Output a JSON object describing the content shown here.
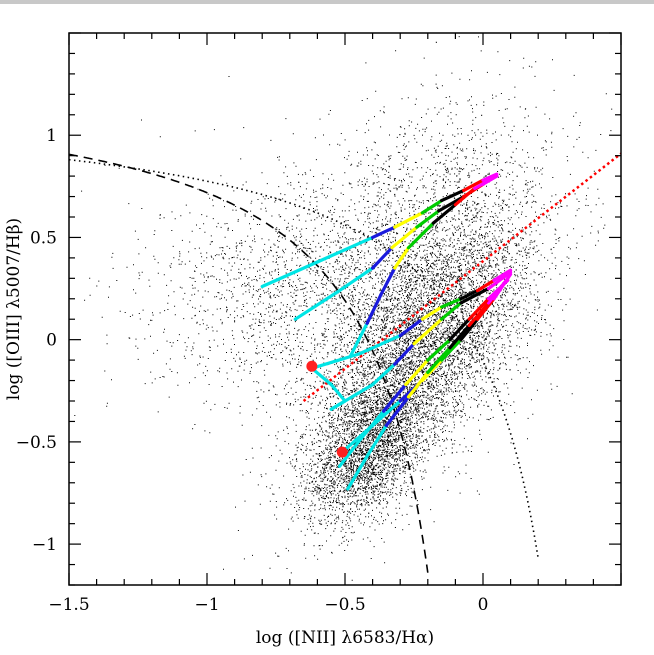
{
  "chart_data": {
    "type": "scatter",
    "title": "",
    "xlabel": "log ([NII] λ6583/Hα)",
    "ylabel": "log ([OIII] λ5007/Hβ)",
    "xlim": [
      -1.5,
      0.5
    ],
    "ylim": [
      -1.2,
      1.5
    ],
    "x_ticks": [
      -1.5,
      -1,
      -0.5,
      0
    ],
    "x_tick_labels": [
      "−1.5",
      "−1",
      "−0.5",
      "0"
    ],
    "y_ticks": [
      -1,
      -0.5,
      0,
      0.5,
      1
    ],
    "y_tick_labels": [
      "−1",
      "−0.5",
      "0",
      "0.5",
      "1"
    ],
    "grid": false,
    "colors": {
      "points": "#000000",
      "kauffmann": "#000000",
      "kewley": "#000000",
      "red_line": "#ff0000",
      "markers": "#ff2020",
      "segment_palette": [
        "#00e5e5",
        "#1a1adc",
        "#ffff00",
        "#00cc00",
        "#000000",
        "#ff0000",
        "#ff00ff"
      ]
    },
    "scatter_clouds": [
      {
        "cx": -0.42,
        "cy": -0.55,
        "sx": 0.11,
        "sy": 0.17,
        "n": 2600,
        "rho": 0.45
      },
      {
        "cx": -0.22,
        "cy": -0.05,
        "sx": 0.2,
        "sy": 0.32,
        "n": 5600,
        "rho": 0.6
      },
      {
        "cx": -0.55,
        "cy": 0.25,
        "sx": 0.32,
        "sy": 0.28,
        "n": 2400,
        "rho": 0.1
      },
      {
        "cx": -0.15,
        "cy": 0.6,
        "sx": 0.22,
        "sy": 0.32,
        "n": 1400,
        "rho": 0.2
      }
    ],
    "curves": [
      {
        "name": "Kauffmann demarcation",
        "style": "dashed",
        "formula": "0.61/(x-0.05)+1.3",
        "x_range": [
          -1.5,
          -0.2
        ]
      },
      {
        "name": "Kewley demarcation",
        "style": "dotted",
        "formula": "0.61/(x-0.47)+1.19",
        "x_range": [
          -1.5,
          0.2
        ]
      },
      {
        "name": "Seyfert/LINER line",
        "style": "red-dotted",
        "points": [
          [
            -0.65,
            -0.3
          ],
          [
            0.5,
            0.91
          ]
        ]
      }
    ],
    "tracks": [
      {
        "points": [
          [
            -0.8,
            0.26
          ],
          [
            -0.6,
            0.38
          ],
          [
            -0.4,
            0.5
          ],
          [
            -0.32,
            0.55
          ],
          [
            -0.22,
            0.62
          ],
          [
            -0.15,
            0.68
          ],
          [
            -0.07,
            0.73
          ],
          [
            0.0,
            0.78
          ],
          [
            0.05,
            0.81
          ]
        ],
        "colors": [
          "#00e5e5",
          "#00e5e5",
          "#1a1adc",
          "#ffff00",
          "#00cc00",
          "#000000",
          "#ff0000",
          "#ff00ff"
        ]
      },
      {
        "points": [
          [
            -0.68,
            0.1
          ],
          [
            -0.52,
            0.24
          ],
          [
            -0.4,
            0.35
          ],
          [
            -0.33,
            0.45
          ],
          [
            -0.24,
            0.55
          ],
          [
            -0.16,
            0.63
          ],
          [
            -0.07,
            0.7
          ],
          [
            0.0,
            0.76
          ],
          [
            0.05,
            0.8
          ]
        ],
        "colors": [
          "#00e5e5",
          "#00e5e5",
          "#1a1adc",
          "#ffff00",
          "#00cc00",
          "#000000",
          "#ff0000",
          "#ff00ff"
        ]
      },
      {
        "points": [
          [
            -0.48,
            -0.08
          ],
          [
            -0.42,
            0.08
          ],
          [
            -0.37,
            0.22
          ],
          [
            -0.32,
            0.35
          ],
          [
            -0.27,
            0.45
          ],
          [
            -0.18,
            0.57
          ],
          [
            -0.1,
            0.66
          ],
          [
            -0.03,
            0.74
          ],
          [
            0.05,
            0.8
          ]
        ],
        "colors": [
          "#00e5e5",
          "#1a1adc",
          "#1a1adc",
          "#ffff00",
          "#00cc00",
          "#000000",
          "#ff0000",
          "#ff00ff"
        ]
      },
      {
        "points": [
          [
            -0.62,
            -0.14
          ],
          [
            -0.45,
            -0.07
          ],
          [
            -0.3,
            0.02
          ],
          [
            -0.22,
            0.1
          ],
          [
            -0.15,
            0.16
          ],
          [
            -0.08,
            0.2
          ],
          [
            -0.02,
            0.24
          ],
          [
            0.04,
            0.29
          ],
          [
            0.1,
            0.34
          ]
        ],
        "colors": [
          "#00e5e5",
          "#00e5e5",
          "#1a1adc",
          "#ffff00",
          "#00cc00",
          "#000000",
          "#ff0000",
          "#ff00ff"
        ]
      },
      {
        "points": [
          [
            -0.62,
            -0.14
          ],
          [
            -0.55,
            -0.22
          ],
          [
            -0.5,
            -0.3
          ],
          [
            -0.55,
            -0.34
          ],
          [
            -0.4,
            -0.22
          ],
          [
            -0.32,
            -0.12
          ],
          [
            -0.25,
            -0.02
          ],
          [
            -0.15,
            0.1
          ],
          [
            -0.08,
            0.18
          ],
          [
            0.02,
            0.25
          ],
          [
            0.1,
            0.33
          ]
        ],
        "colors": [
          "#00e5e5",
          "#00e5e5",
          "#00e5e5",
          "#00e5e5",
          "#00e5e5",
          "#1a1adc",
          "#ffff00",
          "#00cc00",
          "#000000",
          "#ff00ff"
        ]
      },
      {
        "points": [
          [
            -0.51,
            -0.55
          ],
          [
            -0.4,
            -0.42
          ],
          [
            -0.3,
            -0.3
          ],
          [
            -0.22,
            -0.2
          ],
          [
            -0.15,
            -0.1
          ],
          [
            -0.08,
            0.0
          ],
          [
            -0.02,
            0.1
          ],
          [
            0.04,
            0.2
          ],
          [
            0.1,
            0.32
          ]
        ],
        "colors": [
          "#00e5e5",
          "#00e5e5",
          "#1a1adc",
          "#ffff00",
          "#00cc00",
          "#000000",
          "#ff0000",
          "#ff00ff"
        ]
      },
      {
        "points": [
          [
            -0.49,
            -0.73
          ],
          [
            -0.42,
            -0.57
          ],
          [
            -0.35,
            -0.42
          ],
          [
            -0.27,
            -0.28
          ],
          [
            -0.2,
            -0.16
          ],
          [
            -0.12,
            -0.04
          ],
          [
            -0.05,
            0.07
          ],
          [
            0.02,
            0.18
          ],
          [
            0.09,
            0.3
          ]
        ],
        "colors": [
          "#00e5e5",
          "#00e5e5",
          "#1a1adc",
          "#ffff00",
          "#00cc00",
          "#000000",
          "#ff0000",
          "#ff00ff"
        ]
      },
      {
        "points": [
          [
            -0.52,
            -0.62
          ],
          [
            -0.44,
            -0.48
          ],
          [
            -0.36,
            -0.35
          ],
          [
            -0.28,
            -0.22
          ],
          [
            -0.2,
            -0.1
          ],
          [
            -0.12,
            0.0
          ],
          [
            -0.05,
            0.1
          ],
          [
            0.02,
            0.2
          ],
          [
            0.09,
            0.29
          ]
        ],
        "colors": [
          "#00e5e5",
          "#00e5e5",
          "#1a1adc",
          "#ffff00",
          "#00cc00",
          "#000000",
          "#ff0000",
          "#ff00ff"
        ]
      }
    ],
    "markers": [
      {
        "x": -0.62,
        "y": -0.13,
        "color": "#ff2020"
      },
      {
        "x": -0.51,
        "y": -0.55,
        "color": "#ff2020"
      }
    ]
  }
}
